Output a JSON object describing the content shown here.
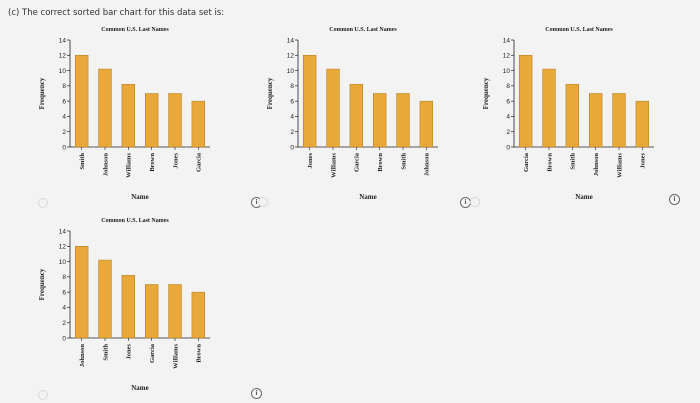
{
  "question": "(c)  The correct sorted bar chart for this data set is:",
  "chart_data": [
    {
      "type": "bar",
      "title": "Common U.S. Last Names",
      "xlabel": "Name",
      "ylabel": "Frequency",
      "ylim": [
        0,
        14
      ],
      "yticks": [
        0,
        2,
        4,
        6,
        8,
        10,
        12,
        14
      ],
      "categories": [
        "Smith",
        "Johnson",
        "Williams",
        "Brown",
        "Jones",
        "Garcia"
      ],
      "values": [
        12,
        10.2,
        8.2,
        7,
        7,
        6
      ]
    },
    {
      "type": "bar",
      "title": "Common U.S. Last Names",
      "xlabel": "Name",
      "ylabel": "Frequency",
      "ylim": [
        0,
        14
      ],
      "yticks": [
        0,
        2,
        4,
        6,
        8,
        10,
        12,
        14
      ],
      "categories": [
        "Jones",
        "Williams",
        "Garcia",
        "Brown",
        "Smith",
        "Johnson"
      ],
      "values": [
        12,
        10.2,
        8.2,
        7,
        7,
        6
      ]
    },
    {
      "type": "bar",
      "title": "Common U.S. Last Names",
      "xlabel": "Name",
      "ylabel": "Frequency",
      "ylim": [
        0,
        14
      ],
      "yticks": [
        0,
        2,
        4,
        6,
        8,
        10,
        12,
        14
      ],
      "categories": [
        "Garcia",
        "Brown",
        "Smith",
        "Johnson",
        "Williams",
        "Jones"
      ],
      "values": [
        12,
        10.2,
        8.2,
        7,
        7,
        6
      ]
    },
    {
      "type": "bar",
      "title": "Common U.S. Last Names",
      "xlabel": "Name",
      "ylabel": "Frequency",
      "ylim": [
        0,
        14
      ],
      "yticks": [
        0,
        2,
        4,
        6,
        8,
        10,
        12,
        14
      ],
      "categories": [
        "Johnson",
        "Smith",
        "Jones",
        "Garcia",
        "Williams",
        "Brown"
      ],
      "values": [
        12,
        10.2,
        8.2,
        7,
        7,
        6
      ]
    }
  ],
  "colors": {
    "bar_fill": "#e8a83a",
    "bar_stroke": "#b07a20",
    "axis": "#222222"
  },
  "icons": [
    "info-icon",
    "radio-icon"
  ]
}
